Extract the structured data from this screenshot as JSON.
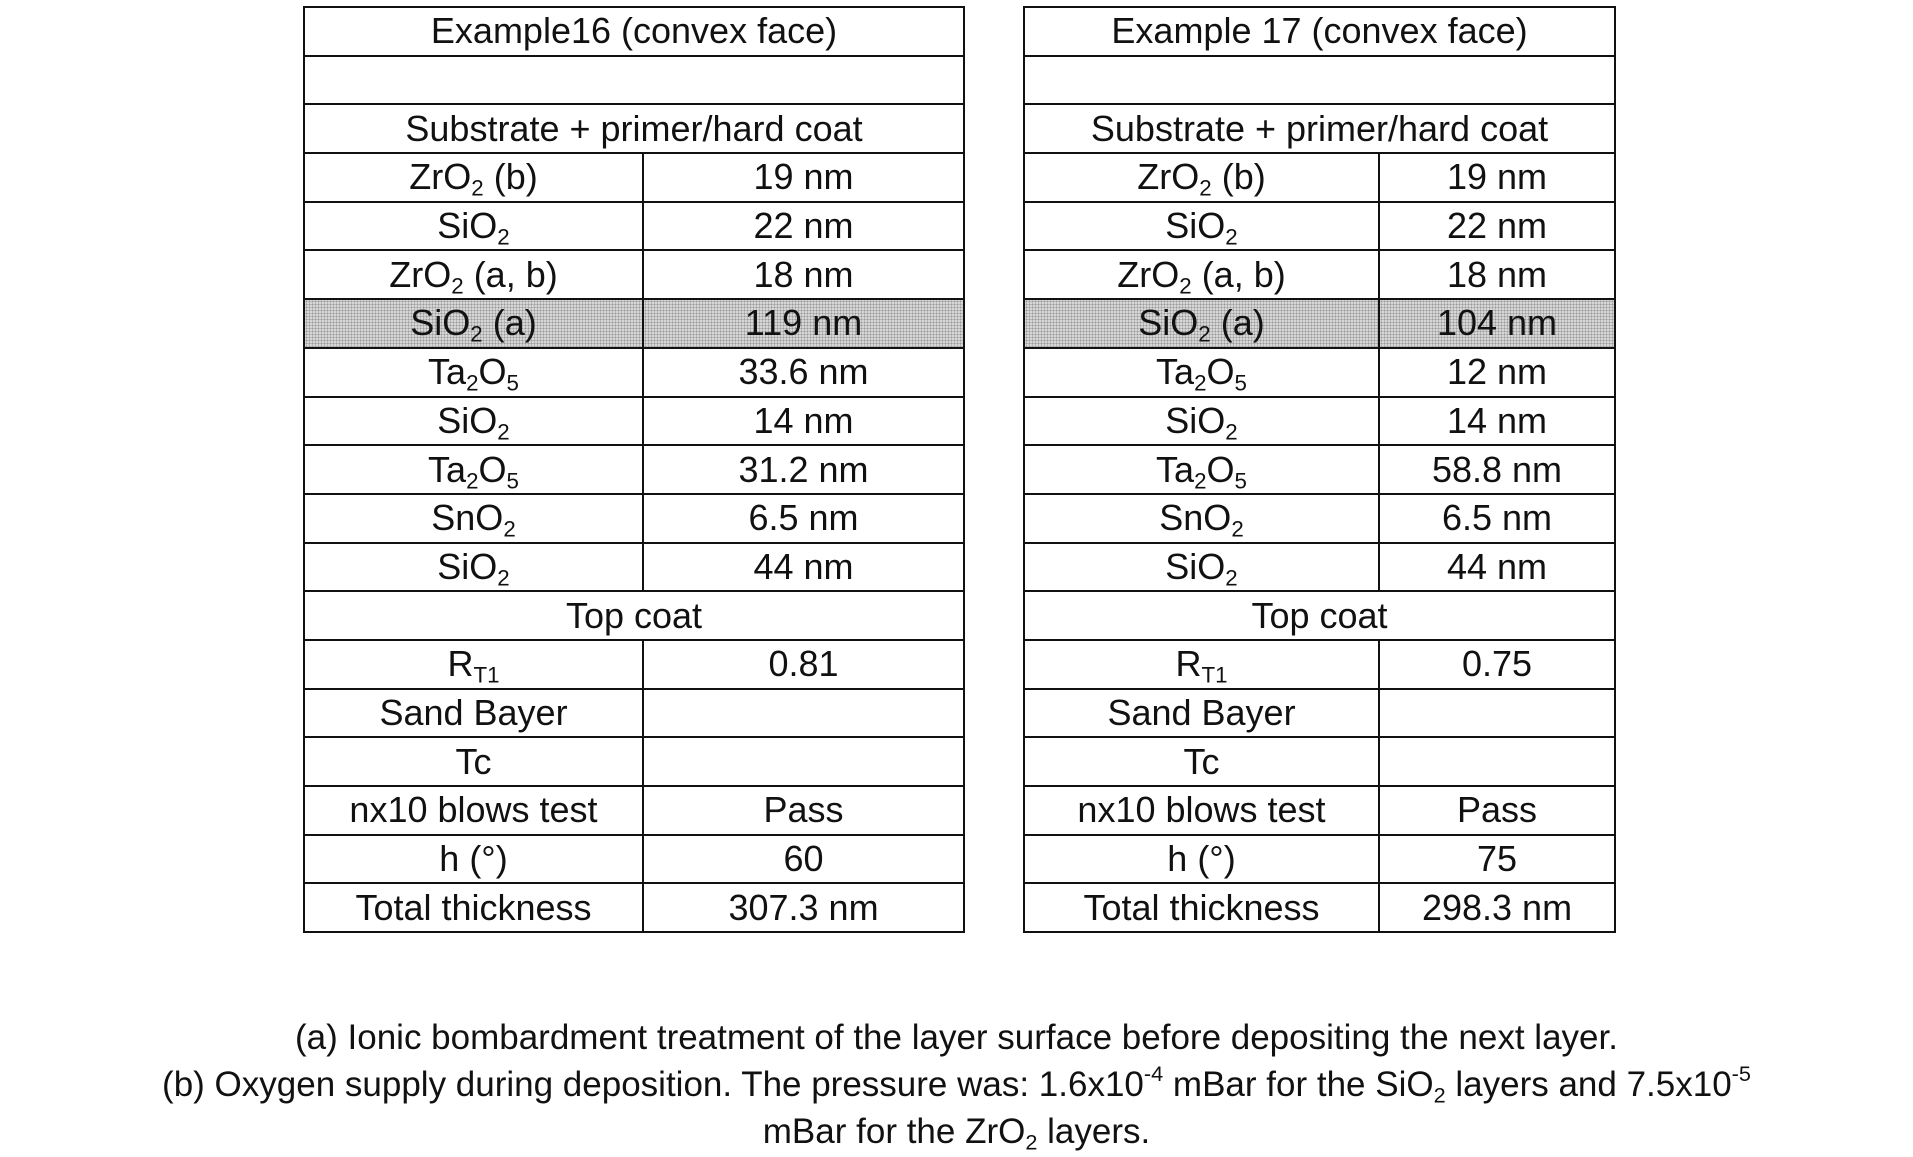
{
  "tables": [
    {
      "title": "Example16 (convex face)",
      "base": "Substrate + primer/hard coat",
      "layers": [
        {
          "material": [
            "ZrO",
            {
              "sub": "2"
            },
            " (b)"
          ],
          "thickness": "19 nm"
        },
        {
          "material": [
            "SiO",
            {
              "sub": "2"
            }
          ],
          "thickness": "22 nm"
        },
        {
          "material": [
            "ZrO",
            {
              "sub": "2"
            },
            " (a, b)"
          ],
          "thickness": "18 nm"
        },
        {
          "material": [
            "SiO",
            {
              "sub": "2"
            },
            " (a)"
          ],
          "thickness": "119 nm",
          "highlight": true
        },
        {
          "material": [
            "Ta",
            {
              "sub": "2"
            },
            "O",
            {
              "sub": "5"
            }
          ],
          "thickness": "33.6 nm"
        },
        {
          "material": [
            "SiO",
            {
              "sub": "2"
            }
          ],
          "thickness": "14 nm"
        },
        {
          "material": [
            "Ta",
            {
              "sub": "2"
            },
            "O",
            {
              "sub": "5"
            }
          ],
          "thickness": "31.2 nm"
        },
        {
          "material": [
            "SnO",
            {
              "sub": "2"
            }
          ],
          "thickness": "6.5 nm"
        },
        {
          "material": [
            "SiO",
            {
              "sub": "2"
            }
          ],
          "thickness": "44 nm"
        }
      ],
      "top": "Top coat",
      "properties": [
        {
          "label": [
            "R",
            {
              "sub": "T1"
            }
          ],
          "value": "0.81"
        },
        {
          "label": [
            "Sand Bayer"
          ]
        },
        {
          "label": [
            "Tc"
          ]
        },
        {
          "label": [
            "nx10 blows test"
          ],
          "value": "Pass"
        },
        {
          "label": [
            "h (°)"
          ],
          "value": "60"
        },
        {
          "label": [
            "Total thickness"
          ],
          "value": "307.3 nm"
        }
      ]
    },
    {
      "title": "Example 17 (convex face)",
      "base": "Substrate + primer/hard coat",
      "layers": [
        {
          "material": [
            "ZrO",
            {
              "sub": "2"
            },
            " (b)"
          ],
          "thickness": "19 nm"
        },
        {
          "material": [
            "SiO",
            {
              "sub": "2"
            }
          ],
          "thickness": "22 nm"
        },
        {
          "material": [
            "ZrO",
            {
              "sub": "2"
            },
            " (a, b)"
          ],
          "thickness": "18 nm"
        },
        {
          "material": [
            "SiO",
            {
              "sub": "2"
            },
            " (a)"
          ],
          "thickness": "104 nm",
          "highlight": true
        },
        {
          "material": [
            "Ta",
            {
              "sub": "2"
            },
            "O",
            {
              "sub": "5"
            }
          ],
          "thickness": "12 nm"
        },
        {
          "material": [
            "SiO",
            {
              "sub": "2"
            }
          ],
          "thickness": "14 nm"
        },
        {
          "material": [
            "Ta",
            {
              "sub": "2"
            },
            "O",
            {
              "sub": "5"
            }
          ],
          "thickness": "58.8 nm"
        },
        {
          "material": [
            "SnO",
            {
              "sub": "2"
            }
          ],
          "thickness": "6.5 nm"
        },
        {
          "material": [
            "SiO",
            {
              "sub": "2"
            }
          ],
          "thickness": "44 nm"
        }
      ],
      "top": "Top coat",
      "properties": [
        {
          "label": [
            "R",
            {
              "sub": "T1"
            }
          ],
          "value": "0.75"
        },
        {
          "label": [
            "Sand Bayer"
          ]
        },
        {
          "label": [
            "Tc"
          ]
        },
        {
          "label": [
            "nx10 blows test"
          ],
          "value": "Pass"
        },
        {
          "label": [
            "h (°)"
          ],
          "value": "75"
        },
        {
          "label": [
            "Total thickness"
          ],
          "value": "298.3 nm"
        }
      ]
    }
  ],
  "footnote_lines": [
    [
      "(a) Ionic bombardment treatment of the layer surface before depositing the next layer."
    ],
    [
      "(b) Oxygen supply during deposition. The pressure was: 1.6x10",
      {
        "sup": "-4"
      },
      " mBar for the SiO",
      {
        "sub": "2"
      },
      " layers and 7.5x10",
      {
        "sup": "-5"
      }
    ],
    [
      "mBar for the ZrO",
      {
        "sub": "2"
      },
      " layers."
    ]
  ]
}
